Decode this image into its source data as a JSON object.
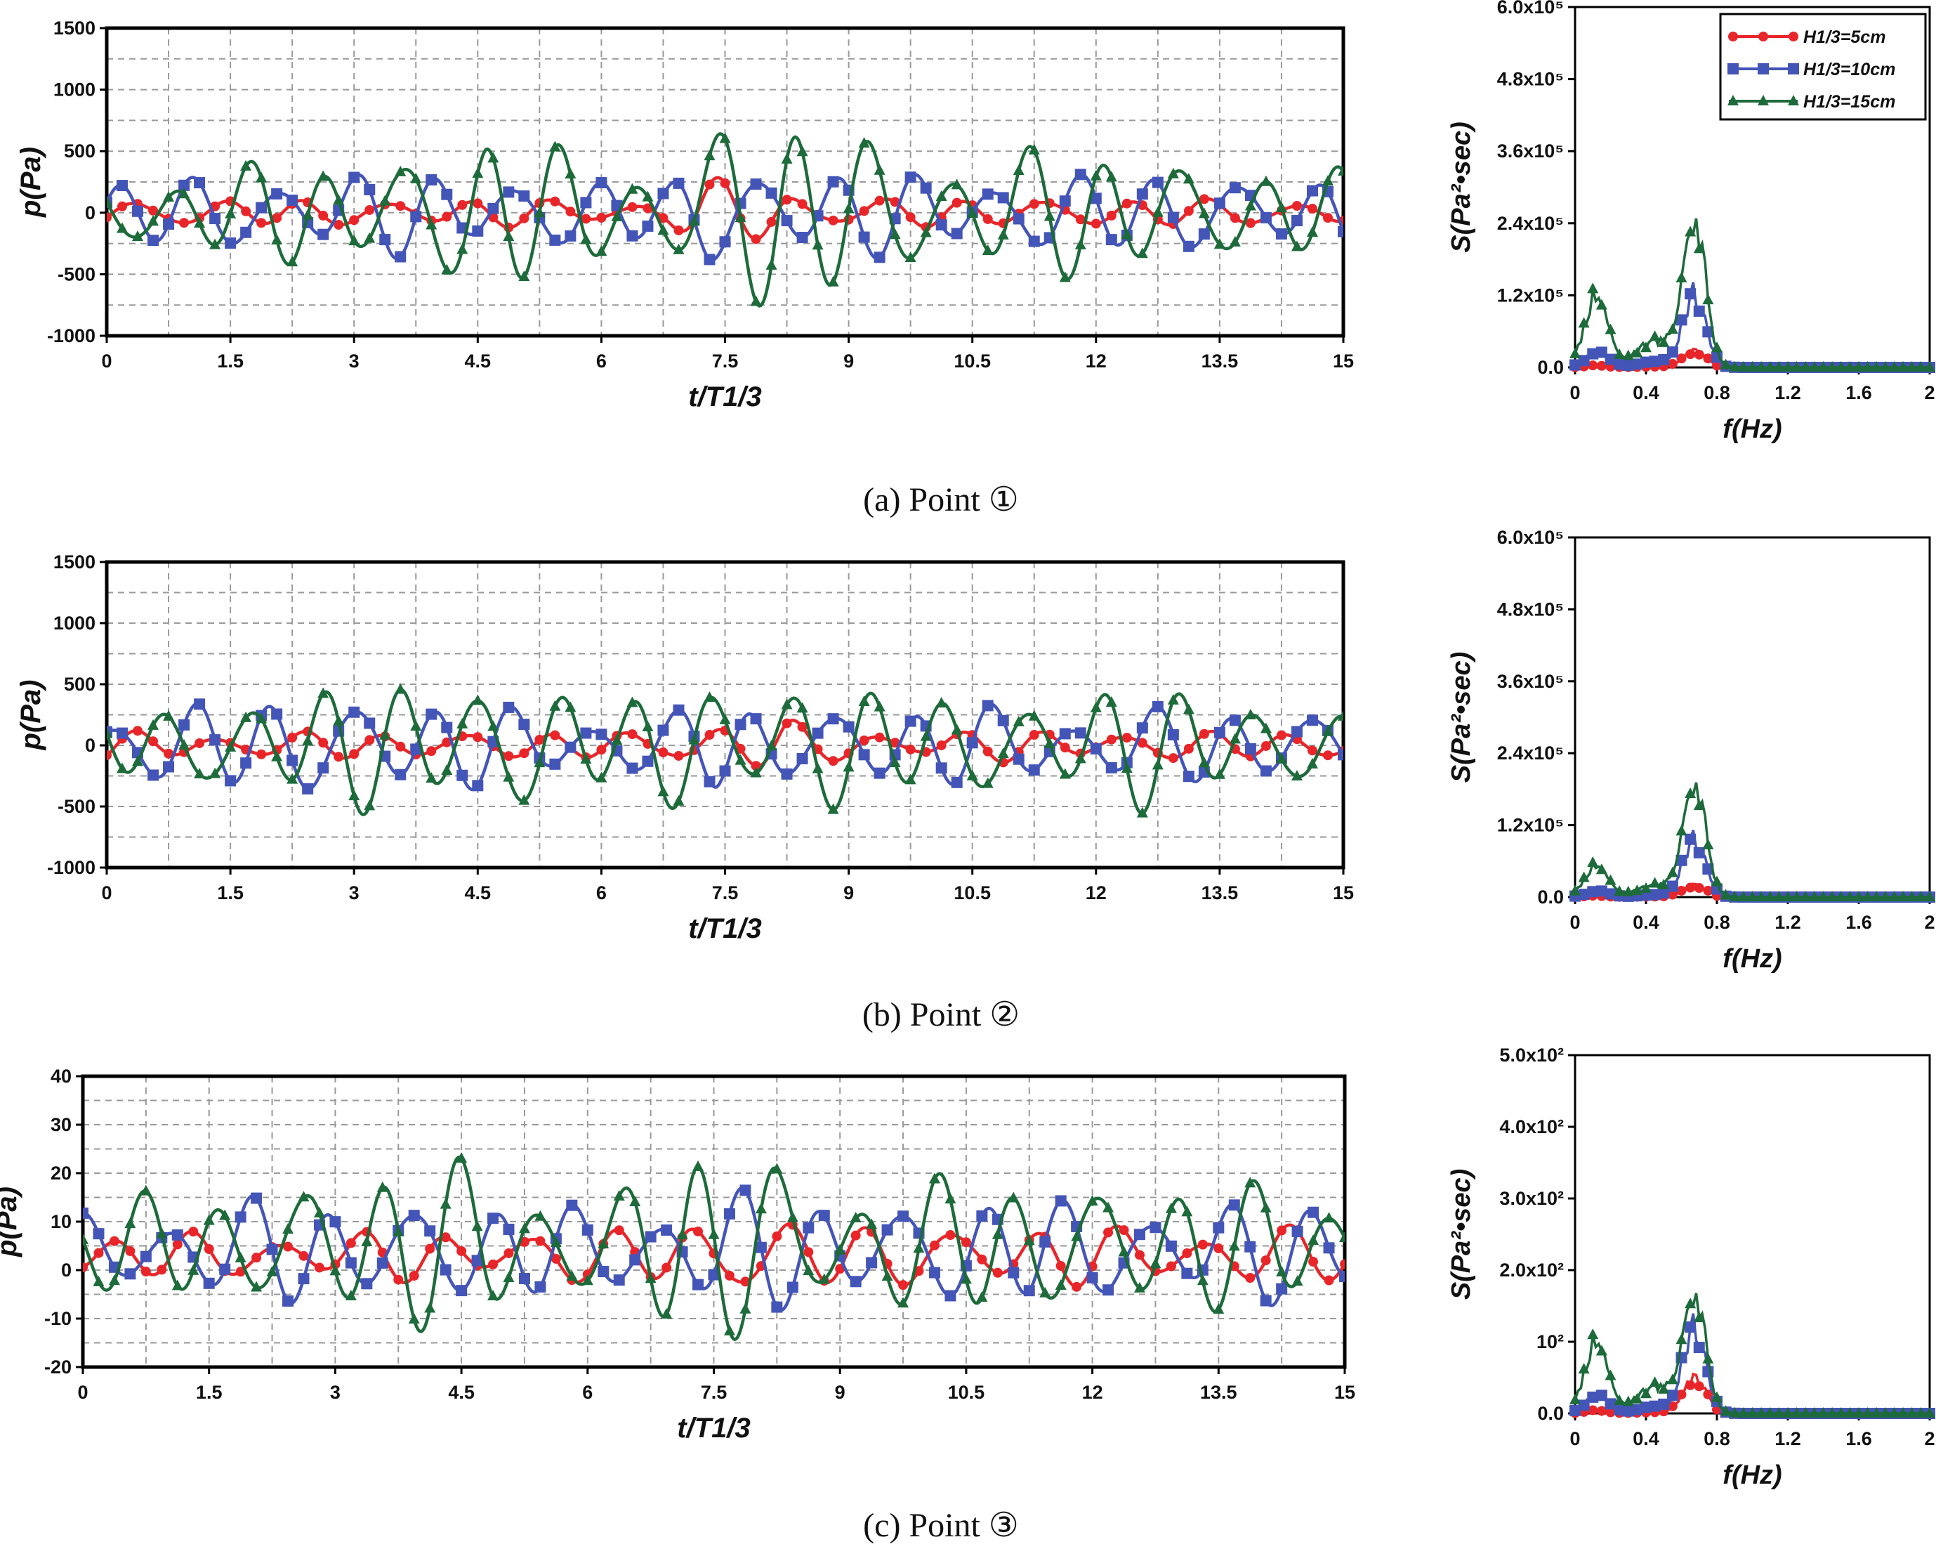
{
  "figure": {
    "panels": [
      {
        "id": "a",
        "caption": "(a) Point ①"
      },
      {
        "id": "b",
        "caption": "(b) Point ②"
      },
      {
        "id": "c",
        "caption": "(c) Point ③"
      }
    ],
    "series_styles": [
      {
        "legend": "H1/3=5cm",
        "color": "#e8262a",
        "marker": "circle"
      },
      {
        "legend": "H1/3=10cm",
        "color": "#4455b8",
        "marker": "square"
      },
      {
        "legend": "H1/3=15cm",
        "color": "#1d6b3a",
        "marker": "triangle"
      }
    ]
  },
  "chart_data": [
    {
      "panel": "a",
      "kind": "time",
      "type": "line",
      "xlabel": "t/T1/3",
      "ylabel": "p(Pa)",
      "xlim": [
        0,
        15
      ],
      "ylim": [
        -1000,
        1500
      ],
      "xticks": [
        "0",
        "1.5",
        "3",
        "4.5",
        "6",
        "7.5",
        "9",
        "10.5",
        "12",
        "13.5",
        "15"
      ],
      "yticks": [
        "-1000",
        "-500",
        "0",
        "500",
        "1000",
        "1500"
      ],
      "grid": true,
      "series": [
        {
          "name": "H1/3=5cm",
          "amp": 100,
          "offset": 0,
          "amps": [
            [
              0,
              100
            ],
            [
              6.8,
              100
            ],
            [
              7.2,
              230
            ],
            [
              8.2,
              230
            ],
            [
              8.6,
              110
            ],
            [
              15,
              100
            ]
          ]
        },
        {
          "name": "H1/3=10cm",
          "amp": 240,
          "offset": 0,
          "amps": [
            [
              0,
              240
            ],
            [
              2.5,
              300
            ],
            [
              4.2,
              300
            ],
            [
              6.8,
              220
            ],
            [
              7.3,
              400
            ],
            [
              8.4,
              350
            ],
            [
              9,
              300
            ],
            [
              15,
              280
            ]
          ]
        },
        {
          "name": "H1/3=15cm",
          "amp": 300,
          "offset": 0,
          "amps": [
            [
              0,
              270
            ],
            [
              3.4,
              420
            ],
            [
              4.6,
              650
            ],
            [
              6.2,
              300
            ],
            [
              7.2,
              700
            ],
            [
              8.2,
              700
            ],
            [
              9.6,
              500
            ],
            [
              12.5,
              450
            ],
            [
              15,
              300
            ]
          ]
        }
      ]
    },
    {
      "panel": "a",
      "kind": "spectrum",
      "type": "line",
      "xlabel": "f(Hz)",
      "ylabel": "S(Pa²•sec)",
      "xlim": [
        0,
        2
      ],
      "ylim": [
        0,
        600000
      ],
      "xticks": [
        "0",
        "0.4",
        "0.8",
        "1.2",
        "1.6",
        "2"
      ],
      "yticks": [
        "0.0",
        "1.2x10⁵",
        "2.4x10⁵",
        "3.6x10⁵",
        "4.8x10⁵",
        "6.0x10⁵"
      ],
      "legend_position": "top-right",
      "legend": [
        "H1/3=5cm",
        "H1/3=10cm",
        "H1/3=15cm"
      ],
      "series": [
        {
          "name": "H1/3=5cm",
          "peak": 28000,
          "low": 3000
        },
        {
          "name": "H1/3=10cm",
          "peak": 120000,
          "low": 25000
        },
        {
          "name": "H1/3=15cm",
          "peak": 245000,
          "low": 125000
        }
      ]
    },
    {
      "panel": "b",
      "kind": "time",
      "type": "line",
      "xlabel": "t/T1/3",
      "ylabel": "p(Pa)",
      "xlim": [
        0,
        15
      ],
      "ylim": [
        -1000,
        1500
      ],
      "xticks": [
        "0",
        "1.5",
        "3",
        "4.5",
        "6",
        "7.5",
        "9",
        "10.5",
        "12",
        "13.5",
        "15"
      ],
      "yticks": [
        "-1000",
        "-500",
        "0",
        "500",
        "1000",
        "1500"
      ],
      "grid": true,
      "series": [
        {
          "name": "H1/3=5cm",
          "amp": 100,
          "offset": 0,
          "amps": [
            [
              0,
              100
            ],
            [
              6.8,
              100
            ],
            [
              7.3,
              200
            ],
            [
              8.2,
              200
            ],
            [
              8.6,
              120
            ],
            [
              15,
              100
            ]
          ]
        },
        {
          "name": "H1/3=10cm",
          "amp": 230,
          "offset": 0,
          "amps": [
            [
              0,
              230
            ],
            [
              2.5,
              400
            ],
            [
              4,
              320
            ],
            [
              6.8,
              220
            ],
            [
              7.4,
              350
            ],
            [
              8.5,
              250
            ],
            [
              9,
              300
            ],
            [
              15,
              260
            ]
          ]
        },
        {
          "name": "H1/3=15cm",
          "amp": 300,
          "offset": 0,
          "amps": [
            [
              0,
              260
            ],
            [
              3.5,
              480
            ],
            [
              4.6,
              600
            ],
            [
              6.2,
              280
            ],
            [
              7.2,
              560
            ],
            [
              8.2,
              560
            ],
            [
              9.6,
              350
            ],
            [
              12.5,
              450
            ],
            [
              15,
              280
            ]
          ]
        }
      ]
    },
    {
      "panel": "b",
      "kind": "spectrum",
      "type": "line",
      "xlabel": "f(Hz)",
      "ylabel": "S(Pa²•sec)",
      "xlim": [
        0,
        2
      ],
      "ylim": [
        0,
        600000
      ],
      "xticks": [
        "0",
        "0.4",
        "0.8",
        "1.2",
        "1.6",
        "2"
      ],
      "yticks": [
        "0.0",
        "1.2x10⁵",
        "2.4x10⁵",
        "3.6x10⁵",
        "4.8x10⁵",
        "6.0x10⁵"
      ],
      "series": [
        {
          "name": "H1/3=5cm",
          "peak": 20000,
          "low": 2000
        },
        {
          "name": "H1/3=10cm",
          "peak": 95000,
          "low": 10000
        },
        {
          "name": "H1/3=15cm",
          "peak": 190000,
          "low": 55000
        }
      ]
    },
    {
      "panel": "c",
      "kind": "time",
      "type": "line",
      "xlabel": "t/T1/3",
      "ylabel": "p(Pa)",
      "xlim": [
        0,
        15
      ],
      "ylim": [
        -20,
        40
      ],
      "xticks": [
        "0",
        "1.5",
        "3",
        "4.5",
        "6",
        "7.5",
        "9",
        "10.5",
        "12",
        "13.5",
        "15"
      ],
      "yticks": [
        "-20",
        "-10",
        "0",
        "10",
        "20",
        "30",
        "40"
      ],
      "grid": true,
      "series": [
        {
          "name": "H1/3=5cm",
          "amp": 5,
          "offset": 3,
          "amps": [
            [
              0,
              4
            ],
            [
              6.5,
              5
            ],
            [
              7.2,
              7
            ],
            [
              8.4,
              7
            ],
            [
              9,
              6
            ],
            [
              15,
              5
            ]
          ]
        },
        {
          "name": "H1/3=10cm",
          "amp": 9,
          "offset": 4,
          "amps": [
            [
              0,
              7
            ],
            [
              2.5,
              10
            ],
            [
              4.5,
              9
            ],
            [
              6.5,
              8
            ],
            [
              7.5,
              12
            ],
            [
              8.5,
              10
            ],
            [
              15,
              9
            ]
          ]
        },
        {
          "name": "H1/3=15cm",
          "amp": 10,
          "offset": 5,
          "amps": [
            [
              0,
              8
            ],
            [
              3.5,
              14
            ],
            [
              4.8,
              17
            ],
            [
              6.2,
              9
            ],
            [
              7.2,
              18
            ],
            [
              8.2,
              18
            ],
            [
              9.2,
              12
            ],
            [
              12.5,
              13
            ],
            [
              15,
              10
            ]
          ]
        }
      ]
    },
    {
      "panel": "c",
      "kind": "spectrum",
      "type": "line",
      "xlabel": "f(Hz)",
      "ylabel": "S(Pa²•sec)",
      "xlim": [
        0,
        2
      ],
      "ylim": [
        0,
        500
      ],
      "xticks": [
        "0",
        "0.4",
        "0.8",
        "1.2",
        "1.6",
        "2"
      ],
      "yticks": [
        "0.0",
        "10²",
        "2.0x10²",
        "3.0x10²",
        "4.0x10²",
        "5.0x10²"
      ],
      "series": [
        {
          "name": "H1/3=5cm",
          "peak": 50,
          "low": 4
        },
        {
          "name": "H1/3=10cm",
          "peak": 118,
          "low": 25
        },
        {
          "name": "H1/3=15cm",
          "peak": 165,
          "low": 105
        }
      ]
    }
  ]
}
